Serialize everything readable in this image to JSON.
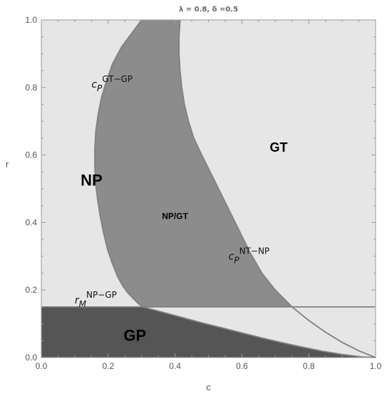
{
  "chart_data": {
    "type": "area",
    "title": "λ = 0.8, δ =0.5",
    "xlabel": "c",
    "ylabel": "r",
    "xlim": [
      0.0,
      1.0
    ],
    "ylim": [
      0.0,
      1.0
    ],
    "x_ticks": [
      "0.0",
      "0.2",
      "0.4",
      "0.6",
      "0.8",
      "1.0"
    ],
    "y_ticks": [
      "0.0",
      "0.2",
      "0.4",
      "0.6",
      "0.8",
      "1.0"
    ],
    "grid": false,
    "colors": {
      "background_region": "#e6e6e6",
      "np_gt_region": "#8c8c8c",
      "gp_region": "#555555",
      "boundary_line": "#808080"
    },
    "regions": [
      {
        "name": "NP",
        "label_at": {
          "x": 0.15,
          "y": 0.51
        }
      },
      {
        "name": "GT",
        "label_at": {
          "x": 0.71,
          "y": 0.61
        }
      },
      {
        "name": "NP/GT",
        "label_at": {
          "x": 0.4,
          "y": 0.41
        }
      },
      {
        "name": "GP",
        "label_at": {
          "x": 0.28,
          "y": 0.05
        }
      }
    ],
    "curves": [
      {
        "name": "cP GT-GP",
        "label": {
          "base": "c",
          "sub": "P",
          "sup": "GT−GP",
          "at": {
            "x": 0.15,
            "y": 0.8
          }
        },
        "x": [
          0.303,
          0.29,
          0.275,
          0.26,
          0.245,
          0.228,
          0.212,
          0.198,
          0.186,
          0.176,
          0.168,
          0.162,
          0.16,
          0.16,
          0.163,
          0.17,
          0.18,
          0.195,
          0.213,
          0.24,
          0.27,
          0.3
        ],
        "y": [
          0.15,
          0.16,
          0.175,
          0.19,
          0.21,
          0.24,
          0.28,
          0.32,
          0.37,
          0.42,
          0.47,
          0.52,
          0.57,
          0.62,
          0.67,
          0.72,
          0.77,
          0.82,
          0.87,
          0.92,
          0.96,
          1.0
        ]
      },
      {
        "name": "cP NT-NP",
        "label": {
          "base": "c",
          "sub": "P",
          "sup": "NT−NP",
          "at": {
            "x": 0.56,
            "y": 0.29
          }
        },
        "x": [
          0.415,
          0.412,
          0.412,
          0.415,
          0.42,
          0.428,
          0.44,
          0.456,
          0.48,
          0.51,
          0.545,
          0.585,
          0.625,
          0.66,
          0.7,
          0.75,
          0.8,
          0.85,
          0.9,
          0.95,
          1.0
        ],
        "y": [
          1.0,
          0.95,
          0.9,
          0.85,
          0.8,
          0.75,
          0.7,
          0.65,
          0.6,
          0.54,
          0.47,
          0.39,
          0.31,
          0.25,
          0.2,
          0.15,
          0.11,
          0.075,
          0.045,
          0.02,
          0.0
        ]
      },
      {
        "name": "rM NP-GP",
        "label": {
          "base": "r",
          "sub": "M",
          "sup": "NP−GP",
          "at": {
            "x": 0.1,
            "y": 0.16
          }
        },
        "x": [
          0.0,
          1.0
        ],
        "y": [
          0.15,
          0.15
        ]
      },
      {
        "name": "GP lower boundary",
        "x": [
          0.303,
          0.36,
          0.42,
          0.48,
          0.54,
          0.6,
          0.66,
          0.72,
          0.78,
          0.84,
          0.9,
          0.96,
          1.0
        ],
        "y": [
          0.15,
          0.135,
          0.119,
          0.103,
          0.088,
          0.073,
          0.058,
          0.044,
          0.031,
          0.019,
          0.009,
          0.002,
          0.0
        ]
      }
    ]
  }
}
